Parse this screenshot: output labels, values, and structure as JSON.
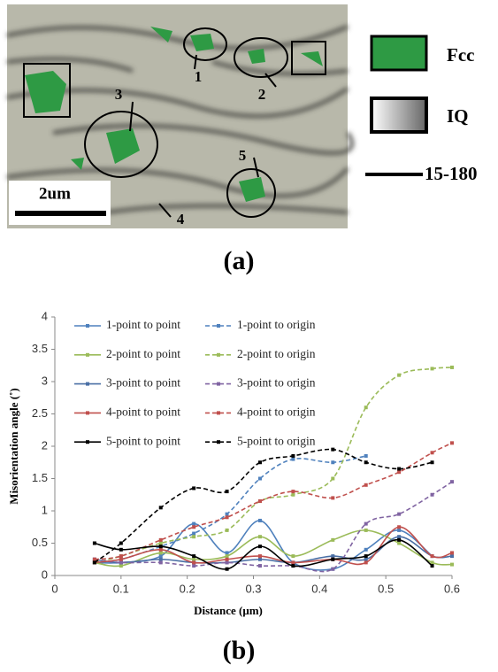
{
  "figure_a": {
    "caption": "(a)",
    "legend": [
      "Fcc",
      "IQ",
      "15-180"
    ],
    "scale_bar": "2um",
    "labels": [
      "1",
      "2",
      "3",
      "4",
      "5"
    ]
  },
  "figure_b": {
    "caption": "(b)"
  },
  "chart_data": {
    "type": "line",
    "xlabel": "Distance (μm)",
    "ylabel": "Misorientation angle (˚)",
    "x": [
      0.06,
      0.1,
      0.16,
      0.21,
      0.26,
      0.31,
      0.36,
      0.42,
      0.47,
      0.52,
      0.57,
      0.6
    ],
    "xlim": [
      0,
      0.6
    ],
    "xticks": [
      0,
      0.1,
      0.2,
      0.3,
      0.4,
      0.5,
      0.6
    ],
    "ylim": [
      0,
      4
    ],
    "yticks": [
      0,
      0.5,
      1,
      1.5,
      2,
      2.5,
      3,
      3.5,
      4
    ],
    "grid": false,
    "series": [
      {
        "name": "1-point to point",
        "color": "#4f81bd",
        "dashed": false,
        "values": [
          0.2,
          0.2,
          0.3,
          0.8,
          0.35,
          0.85,
          0.2,
          0.1,
          0.4,
          0.7,
          0.3,
          null
        ]
      },
      {
        "name": "1-point to origin",
        "color": "#4f81bd",
        "dashed": true,
        "values": [
          0.2,
          0.25,
          0.45,
          0.65,
          0.95,
          1.5,
          1.8,
          1.75,
          1.85,
          null,
          null,
          null
        ]
      },
      {
        "name": "2-point to point",
        "color": "#9bbb59",
        "dashed": false,
        "values": [
          0.2,
          0.15,
          0.35,
          0.25,
          0.3,
          0.6,
          0.3,
          0.55,
          0.7,
          0.5,
          0.2,
          0.17
        ]
      },
      {
        "name": "2-point to origin",
        "color": "#9bbb59",
        "dashed": true,
        "values": [
          0.2,
          0.3,
          0.5,
          0.6,
          0.7,
          1.15,
          1.25,
          1.5,
          2.6,
          3.1,
          3.2,
          3.22
        ]
      },
      {
        "name": "3-point to point",
        "color": "#4a6fa5",
        "dashed": false,
        "values": [
          0.25,
          0.2,
          0.25,
          0.2,
          0.2,
          0.25,
          0.2,
          0.3,
          0.25,
          0.6,
          0.3,
          0.3
        ]
      },
      {
        "name": "3-point to origin",
        "color": "#8064a2",
        "dashed": true,
        "values": [
          0.25,
          0.2,
          0.2,
          0.15,
          0.2,
          0.15,
          0.15,
          0.1,
          0.8,
          0.95,
          1.25,
          1.45
        ]
      },
      {
        "name": "4-point to point",
        "color": "#c0504d",
        "dashed": false,
        "values": [
          0.2,
          0.25,
          0.4,
          0.2,
          0.25,
          0.3,
          0.2,
          0.25,
          0.2,
          0.75,
          0.3,
          0.35
        ]
      },
      {
        "name": "4-point to origin",
        "color": "#c0504d",
        "dashed": true,
        "values": [
          0.25,
          0.3,
          0.55,
          0.75,
          0.9,
          1.15,
          1.3,
          1.2,
          1.4,
          1.6,
          1.9,
          2.05
        ]
      },
      {
        "name": "5-point to point",
        "color": "#000000",
        "dashed": false,
        "values": [
          0.5,
          0.4,
          0.45,
          0.3,
          0.1,
          0.45,
          0.15,
          0.25,
          0.3,
          0.55,
          0.15,
          null
        ]
      },
      {
        "name": "5-point to origin",
        "color": "#000000",
        "dashed": true,
        "values": [
          0.2,
          0.5,
          1.05,
          1.35,
          1.3,
          1.75,
          1.85,
          1.95,
          1.75,
          1.65,
          1.75,
          null
        ]
      }
    ]
  }
}
